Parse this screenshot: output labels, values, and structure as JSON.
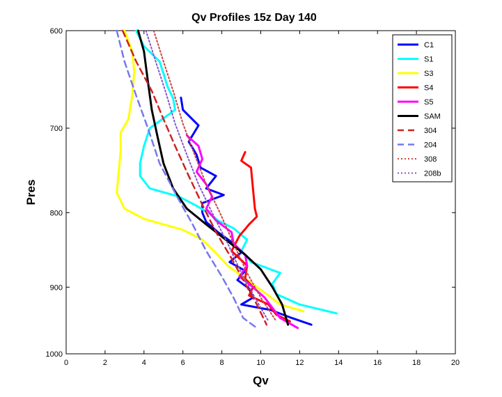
{
  "chart_data": {
    "type": "line",
    "title": "Qv Profiles 15z Day 140",
    "xlabel": "Qv",
    "ylabel": "Pres",
    "xlim": [
      0,
      20
    ],
    "ylim": [
      600,
      1000
    ],
    "y_reversed": true,
    "y_scale": "log",
    "grid": false,
    "legend_position": "top-right",
    "x_ticks": [
      "0",
      "2",
      "4",
      "6",
      "8",
      "10",
      "12",
      "14",
      "16",
      "18",
      "20"
    ],
    "y_ticks": [
      "600",
      "700",
      "800",
      "900",
      "1000"
    ],
    "series": [
      {
        "name": "C1",
        "color": "#0000ff",
        "style": "solid",
        "width": 3,
        "points": [
          [
            5.9,
            667
          ],
          [
            6.0,
            680
          ],
          [
            6.8,
            697
          ],
          [
            6.3,
            715
          ],
          [
            6.7,
            730
          ],
          [
            6.9,
            745
          ],
          [
            7.7,
            755
          ],
          [
            7.2,
            770
          ],
          [
            8.1,
            778
          ],
          [
            7.0,
            788
          ],
          [
            7.0,
            800
          ],
          [
            7.2,
            812
          ],
          [
            7.8,
            825
          ],
          [
            8.6,
            840
          ],
          [
            9.0,
            852
          ],
          [
            8.4,
            865
          ],
          [
            9.2,
            877
          ],
          [
            8.8,
            890
          ],
          [
            9.4,
            902
          ],
          [
            9.6,
            915
          ],
          [
            9.0,
            925
          ],
          [
            10.5,
            933
          ],
          [
            11.6,
            945
          ],
          [
            12.6,
            955
          ]
        ]
      },
      {
        "name": "S1",
        "color": "#00ffff",
        "style": "solid",
        "width": 3,
        "points": [
          [
            3.6,
            600
          ],
          [
            4.0,
            615
          ],
          [
            4.8,
            630
          ],
          [
            5.0,
            642
          ],
          [
            5.2,
            655
          ],
          [
            5.5,
            668
          ],
          [
            5.6,
            680
          ],
          [
            4.3,
            700
          ],
          [
            4.0,
            720
          ],
          [
            3.8,
            740
          ],
          [
            3.8,
            755
          ],
          [
            4.3,
            770
          ],
          [
            5.8,
            780
          ],
          [
            6.6,
            790
          ],
          [
            7.3,
            800
          ],
          [
            7.8,
            810
          ],
          [
            8.6,
            820
          ],
          [
            9.3,
            835
          ],
          [
            9.0,
            850
          ],
          [
            9.5,
            865
          ],
          [
            11.0,
            880
          ],
          [
            10.6,
            895
          ],
          [
            10.8,
            910
          ],
          [
            12.0,
            925
          ],
          [
            13.9,
            938
          ]
        ]
      },
      {
        "name": "S3",
        "color": "#ffff00",
        "style": "solid",
        "width": 3,
        "points": [
          [
            3.0,
            600
          ],
          [
            3.4,
            620
          ],
          [
            3.5,
            640
          ],
          [
            3.4,
            665
          ],
          [
            3.2,
            690
          ],
          [
            2.8,
            705
          ],
          [
            2.8,
            725
          ],
          [
            2.7,
            750
          ],
          [
            2.6,
            775
          ],
          [
            3.0,
            795
          ],
          [
            4.0,
            808
          ],
          [
            5.0,
            815
          ],
          [
            6.0,
            822
          ],
          [
            7.0,
            835
          ],
          [
            7.6,
            850
          ],
          [
            8.3,
            870
          ],
          [
            9.3,
            890
          ],
          [
            10.3,
            910
          ],
          [
            11.0,
            925
          ],
          [
            12.2,
            935
          ]
        ]
      },
      {
        "name": "S4",
        "color": "#ff0000",
        "style": "solid",
        "width": 3,
        "points": [
          [
            9.2,
            727
          ],
          [
            9.0,
            737
          ],
          [
            9.5,
            745
          ],
          [
            9.6,
            770
          ],
          [
            9.7,
            795
          ],
          [
            9.8,
            805
          ],
          [
            9.4,
            815
          ],
          [
            8.9,
            830
          ],
          [
            8.5,
            850
          ],
          [
            9.3,
            870
          ],
          [
            9.2,
            888
          ],
          [
            9.6,
            900
          ],
          [
            9.4,
            912
          ],
          [
            10.4,
            925
          ],
          [
            10.8,
            940
          ],
          [
            11.5,
            950
          ]
        ]
      },
      {
        "name": "S5",
        "color": "#ff00ff",
        "style": "solid",
        "width": 3,
        "points": [
          [
            6.2,
            708
          ],
          [
            6.8,
            720
          ],
          [
            7.0,
            735
          ],
          [
            6.7,
            750
          ],
          [
            7.2,
            765
          ],
          [
            7.5,
            780
          ],
          [
            7.2,
            795
          ],
          [
            7.7,
            810
          ],
          [
            8.5,
            825
          ],
          [
            8.6,
            840
          ],
          [
            9.2,
            855
          ],
          [
            9.3,
            870
          ],
          [
            8.9,
            885
          ],
          [
            9.6,
            900
          ],
          [
            10.2,
            915
          ],
          [
            10.6,
            930
          ],
          [
            11.0,
            945
          ],
          [
            11.9,
            960
          ]
        ]
      },
      {
        "name": "SAM",
        "color": "#000000",
        "style": "solid",
        "width": 3,
        "points": [
          [
            3.7,
            600
          ],
          [
            4.0,
            620
          ],
          [
            4.2,
            650
          ],
          [
            4.4,
            680
          ],
          [
            4.7,
            710
          ],
          [
            5.0,
            740
          ],
          [
            5.5,
            770
          ],
          [
            6.2,
            795
          ],
          [
            7.2,
            815
          ],
          [
            8.2,
            835
          ],
          [
            9.2,
            855
          ],
          [
            10.0,
            875
          ],
          [
            10.6,
            900
          ],
          [
            11.1,
            925
          ],
          [
            11.4,
            955
          ]
        ]
      },
      {
        "name": "304",
        "color": "#cc2222",
        "style": "dashed",
        "width": 2.5,
        "points": [
          [
            2.9,
            600
          ],
          [
            3.6,
            630
          ],
          [
            4.4,
            660
          ],
          [
            5.0,
            690
          ],
          [
            5.6,
            720
          ],
          [
            6.3,
            755
          ],
          [
            7.0,
            790
          ],
          [
            7.7,
            825
          ],
          [
            8.5,
            860
          ],
          [
            9.2,
            895
          ],
          [
            9.8,
            925
          ],
          [
            10.3,
            955
          ]
        ]
      },
      {
        "name": "204",
        "color": "#7777ee",
        "style": "dashed",
        "width": 2.5,
        "points": [
          [
            2.6,
            600
          ],
          [
            3.0,
            630
          ],
          [
            3.6,
            665
          ],
          [
            4.2,
            700
          ],
          [
            4.8,
            740
          ],
          [
            5.7,
            780
          ],
          [
            6.5,
            815
          ],
          [
            7.2,
            850
          ],
          [
            8.0,
            885
          ],
          [
            8.6,
            915
          ],
          [
            9.1,
            945
          ],
          [
            9.8,
            960
          ]
        ]
      },
      {
        "name": "308",
        "color": "#cc4444",
        "style": "dotted",
        "width": 2,
        "points": [
          [
            4.5,
            600
          ],
          [
            5.0,
            630
          ],
          [
            5.5,
            660
          ],
          [
            6.0,
            695
          ],
          [
            6.6,
            730
          ],
          [
            7.2,
            765
          ],
          [
            7.9,
            800
          ],
          [
            8.6,
            840
          ],
          [
            9.3,
            880
          ],
          [
            10.0,
            915
          ],
          [
            10.8,
            950
          ]
        ]
      },
      {
        "name": "208b",
        "color": "#8855cc",
        "style": "dotted",
        "width": 2,
        "points": [
          [
            4.1,
            600
          ],
          [
            4.6,
            630
          ],
          [
            5.1,
            660
          ],
          [
            5.6,
            695
          ],
          [
            6.2,
            730
          ],
          [
            6.8,
            765
          ],
          [
            7.5,
            800
          ],
          [
            8.3,
            840
          ],
          [
            9.0,
            880
          ],
          [
            9.7,
            915
          ],
          [
            10.4,
            950
          ]
        ]
      }
    ]
  }
}
